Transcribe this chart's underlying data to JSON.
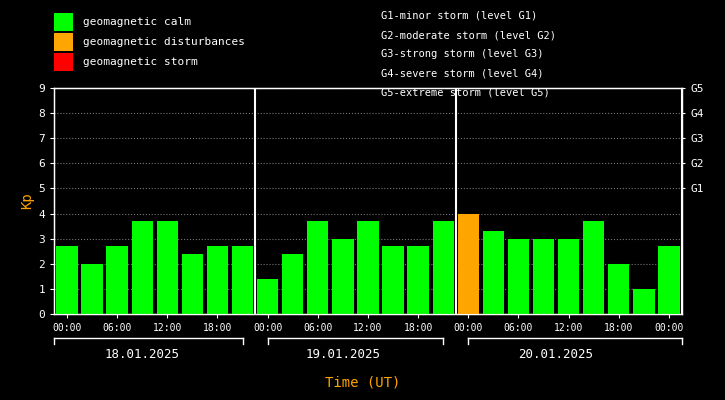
{
  "background_color": "#000000",
  "text_color": "#ffffff",
  "axis_color": "#ffffff",
  "title_x_label": "Time (UT)",
  "title_x_color": "#ffa500",
  "kp_label": "Kp",
  "kp_label_color": "#ffa500",
  "bar_width": 0.85,
  "ylim": [
    0,
    9
  ],
  "yticks": [
    0,
    1,
    2,
    3,
    4,
    5,
    6,
    7,
    8,
    9
  ],
  "green": "#00ff00",
  "orange": "#ffa500",
  "red": "#ff0000",
  "legend_items": [
    {
      "label": "geomagnetic calm",
      "color": "#00ff00"
    },
    {
      "label": "geomagnetic disturbances",
      "color": "#ffa500"
    },
    {
      "label": "geomagnetic storm",
      "color": "#ff0000"
    }
  ],
  "legend2_lines": [
    "G1-minor storm (level G1)",
    "G2-moderate storm (level G2)",
    "G3-strong storm (level G3)",
    "G4-severe storm (level G4)",
    "G5-extreme storm (level G5)"
  ],
  "day_labels": [
    "18.01.2025",
    "19.01.2025",
    "20.01.2025"
  ],
  "kp_values": [
    2.7,
    2.0,
    2.7,
    3.7,
    3.7,
    2.4,
    2.7,
    2.7,
    1.4,
    2.4,
    3.7,
    3.0,
    3.7,
    2.7,
    2.7,
    3.7,
    4.0,
    3.3,
    3.0,
    3.0,
    3.0,
    3.7,
    2.0,
    1.0,
    2.7
  ],
  "bar_colors": [
    "#00ff00",
    "#00ff00",
    "#00ff00",
    "#00ff00",
    "#00ff00",
    "#00ff00",
    "#00ff00",
    "#00ff00",
    "#00ff00",
    "#00ff00",
    "#00ff00",
    "#00ff00",
    "#00ff00",
    "#00ff00",
    "#00ff00",
    "#00ff00",
    "#ffa500",
    "#00ff00",
    "#00ff00",
    "#00ff00",
    "#00ff00",
    "#00ff00",
    "#00ff00",
    "#00ff00",
    "#00ff00"
  ],
  "tick_labels": [
    "00:00",
    "06:00",
    "12:00",
    "18:00",
    "00:00",
    "06:00",
    "12:00",
    "18:00",
    "00:00",
    "06:00",
    "12:00",
    "18:00",
    "00:00"
  ],
  "dot_color": "#777777",
  "separator_color": "#ffffff",
  "right_yticks": [
    5,
    6,
    7,
    8,
    9
  ],
  "right_ytick_labels": [
    "G1",
    "G2",
    "G3",
    "G4",
    "G5"
  ]
}
